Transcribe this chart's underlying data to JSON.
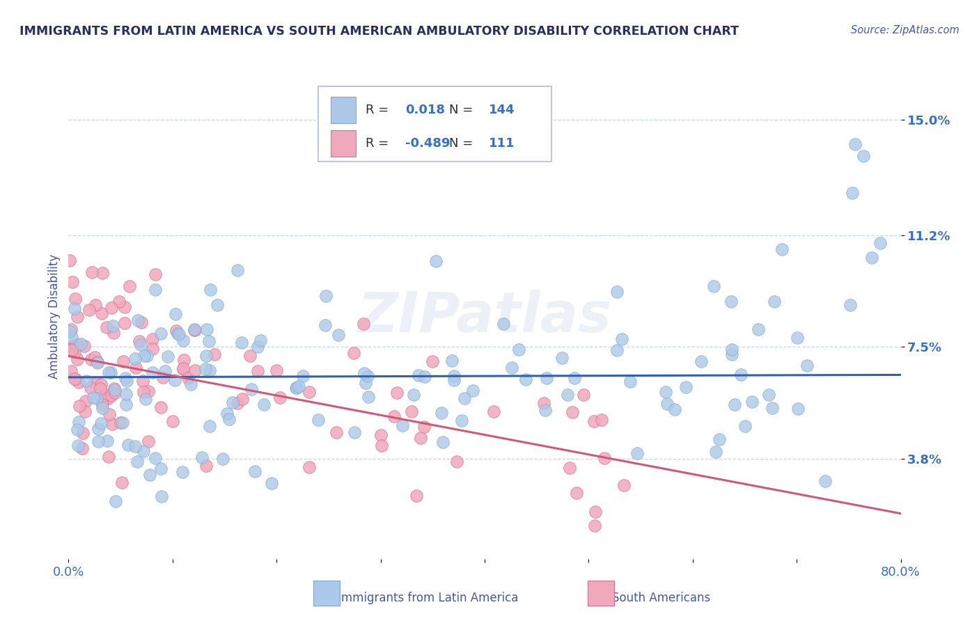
{
  "title": "IMMIGRANTS FROM LATIN AMERICA VS SOUTH AMERICAN AMBULATORY DISABILITY CORRELATION CHART",
  "source": "Source: ZipAtlas.com",
  "ylabel": "Ambulatory Disability",
  "xlim": [
    0.0,
    0.8
  ],
  "ylim": [
    0.005,
    0.165
  ],
  "yticks": [
    0.038,
    0.075,
    0.112,
    0.15
  ],
  "ytick_labels": [
    "3.8%",
    "7.5%",
    "11.2%",
    "15.0%"
  ],
  "xticks": [
    0.0,
    0.1,
    0.2,
    0.3,
    0.4,
    0.5,
    0.6,
    0.7,
    0.8
  ],
  "xtick_labels": [
    "0.0%",
    "",
    "",
    "",
    "",
    "",
    "",
    "",
    "80.0%"
  ],
  "series1_label": "Immigrants from Latin America",
  "series1_R": "0.018",
  "series1_N": "144",
  "series1_color": "#adc8e8",
  "series1_edge_color": "#7aaad0",
  "series1_line_color": "#3060b0",
  "series2_label": "South Americans",
  "series2_R": "-0.489",
  "series2_N": "111",
  "series2_color": "#f0a8bc",
  "series2_edge_color": "#d87090",
  "series2_line_color": "#d05878",
  "background_color": "#ffffff",
  "grid_color": "#c8d4e8",
  "title_color": "#283060",
  "axis_label_color": "#4858a0",
  "tick_label_color": "#3870c0",
  "watermark": "ZIPatlas",
  "legend_R_color": "#3870c0",
  "legend_text_color": "#303030"
}
